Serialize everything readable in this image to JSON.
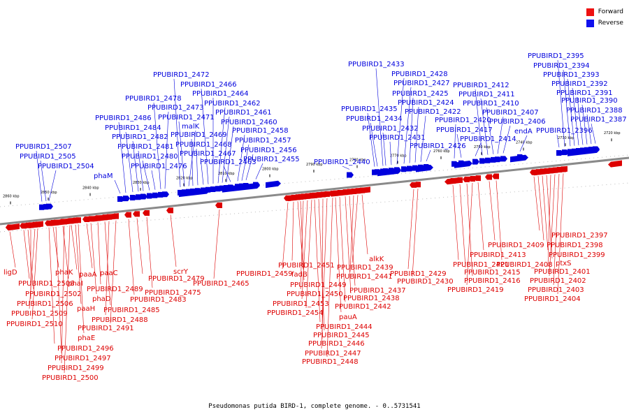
{
  "colors": {
    "forward": "#dd0000",
    "reverse": "#0000dd",
    "backbone": "#888888"
  },
  "legend": {
    "forward": "Forward",
    "reverse": "Reverse"
  },
  "caption": "Pseudomonas putida BIRD-1, complete genome. - 0..5731541",
  "ticks": [
    "2860 kbp",
    "2850 kbp",
    "2840 kbp",
    "2830 kbp",
    "2820 kbp",
    "2810 kbp",
    "2800 kbp",
    "2790 kbp",
    "2780 kbp",
    "2770 kbp",
    "2760 kbp",
    "2750 kbp",
    "2740 kbp",
    "2730 kbp",
    "2720 kbp"
  ],
  "reverse_genes": [
    "PPUBIRD1_2507",
    "PPUBIRD1_2505",
    "PPUBIRD1_2504",
    "phaM",
    "PPUBIRD1_2486",
    "PPUBIRD1_2484",
    "PPUBIRD1_2482",
    "PPUBIRD1_2481",
    "PPUBIRD1_2480",
    "PPUBIRD1_2476",
    "PPUBIRD1_2478",
    "PPUBIRD1_2473",
    "PPUBIRD1_2472",
    "PPUBIRD1_2471",
    "malK",
    "PPUBIRD1_2469",
    "PPUBIRD1_2468",
    "PPUBIRD1_2467",
    "PPUBIRD1_2466",
    "PPUBIRD1_2464",
    "PPUBIRD1_2462",
    "PPUBIRD1_2461",
    "PPUBIRD1_2460",
    "PPUBIRD1_2463",
    "PPUBIRD1_2458",
    "PPUBIRD1_2457",
    "PPUBIRD1_2456",
    "PPUBIRD1_2455",
    "PPUBIRD1_2440",
    "PPUBIRD1_2433",
    "PPUBIRD1_2435",
    "PPUBIRD1_2434",
    "PPUBIRD1_2432",
    "PPUBIRD1_2431",
    "PPUBIRD1_2428",
    "PPUBIRD1_2427",
    "PPUBIRD1_2425",
    "PPUBIRD1_2424",
    "PPUBIRD1_2422",
    "PPUBIRD1_2426",
    "PPUBIRD1_2420",
    "PPUBIRD1_2417",
    "PPUBIRD1_2414",
    "PPUBIRD1_2412",
    "PPUBIRD1_2411",
    "PPUBIRD1_2410",
    "PPUBIRD1_2407",
    "PPUBIRD1_2406",
    "endA",
    "PPUBIRD1_2395",
    "PPUBIRD1_2394",
    "PPUBIRD1_2393",
    "PPUBIRD1_2392",
    "PPUBIRD1_2391",
    "PPUBIRD1_2390",
    "PPUBIRD1_2388",
    "PPUBIRD1_2387",
    "PPUBIRD1_2396"
  ],
  "forward_genes": [
    "ligD",
    "PPUBIRD1_2508",
    "PPUBIRD1_2502",
    "PPUBIRD1_2506",
    "PPUBIRD1_2509",
    "PPUBIRD1_2510",
    "phaK",
    "phaI",
    "paaA",
    "paaH",
    "phaE",
    "paaC",
    "phaD",
    "PPUBIRD1_2489",
    "PPUBIRD1_2485",
    "PPUBIRD1_2488",
    "PPUBIRD1_2491",
    "PPUBIRD1_2496",
    "PPUBIRD1_2497",
    "PPUBIRD1_2499",
    "PPUBIRD1_2500",
    "PPUBIRD1_2483",
    "PPUBIRD1_2479",
    "PPUBIRD1_2475",
    "scrY",
    "PPUBIRD1_2465",
    "PPUBIRD1_2459",
    "PPUBIRD1_2451",
    "fadB",
    "PPUBIRD1_2449",
    "PPUBIRD1_2450",
    "PPUBIRD1_2453",
    "PPUBIRD1_2454",
    "PPUBIRD1_2444",
    "PPUBIRD1_2445",
    "PPUBIRD1_2446",
    "PPUBIRD1_2447",
    "PPUBIRD1_2448",
    "pauA",
    "PPUBIRD1_2442",
    "PPUBIRD1_2438",
    "PPUBIRD1_2437",
    "PPUBIRD1_2441",
    "PPUBIRD1_2439",
    "alkK",
    "PPUBIRD1_2429",
    "PPUBIRD1_2430",
    "PPUBIRD1_2421",
    "PPUBIRD1_2415",
    "PPUBIRD1_2416",
    "PPUBIRD1_2419",
    "PPUBIRD1_2413",
    "PPUBIRD1_2409",
    "PPUBIRD1_2408",
    "PPUBIRD1_2397",
    "PPUBIRD1_2398",
    "PPUBIRD1_2399",
    "ptxS",
    "PPUBIRD1_2401",
    "PPUBIRD1_2402",
    "PPUBIRD1_2403",
    "PPUBIRD1_2404"
  ]
}
